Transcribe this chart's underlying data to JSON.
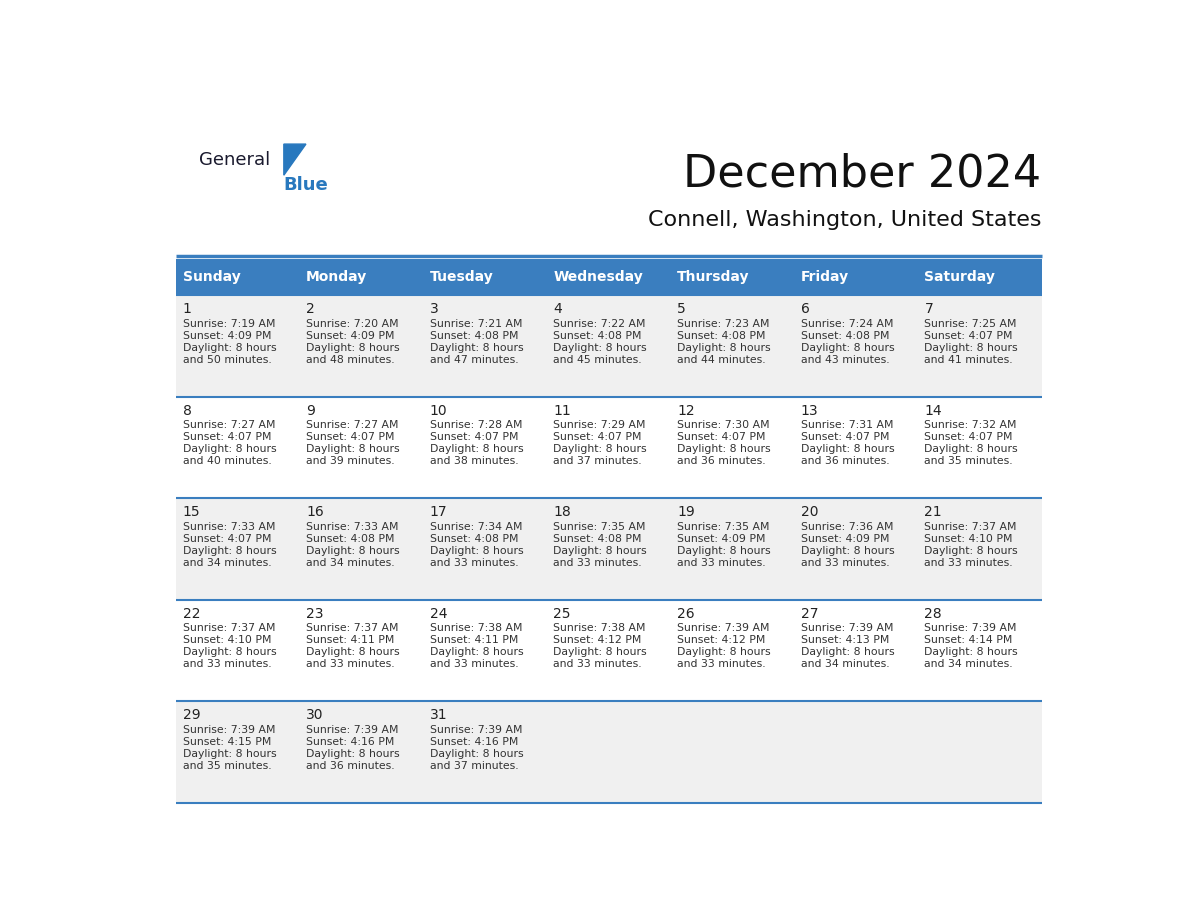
{
  "title": "December 2024",
  "subtitle": "Connell, Washington, United States",
  "header_bg": "#3a7ebf",
  "header_text_color": "#ffffff",
  "row_bg_even": "#f0f0f0",
  "row_bg_odd": "#ffffff",
  "border_color": "#3a7ebf",
  "day_names": [
    "Sunday",
    "Monday",
    "Tuesday",
    "Wednesday",
    "Thursday",
    "Friday",
    "Saturday"
  ],
  "days": [
    {
      "day": 1,
      "col": 0,
      "row": 0,
      "sunrise": "7:19 AM",
      "sunset": "4:09 PM",
      "daylight_min": "50 minutes."
    },
    {
      "day": 2,
      "col": 1,
      "row": 0,
      "sunrise": "7:20 AM",
      "sunset": "4:09 PM",
      "daylight_min": "48 minutes."
    },
    {
      "day": 3,
      "col": 2,
      "row": 0,
      "sunrise": "7:21 AM",
      "sunset": "4:08 PM",
      "daylight_min": "47 minutes."
    },
    {
      "day": 4,
      "col": 3,
      "row": 0,
      "sunrise": "7:22 AM",
      "sunset": "4:08 PM",
      "daylight_min": "45 minutes."
    },
    {
      "day": 5,
      "col": 4,
      "row": 0,
      "sunrise": "7:23 AM",
      "sunset": "4:08 PM",
      "daylight_min": "44 minutes."
    },
    {
      "day": 6,
      "col": 5,
      "row": 0,
      "sunrise": "7:24 AM",
      "sunset": "4:08 PM",
      "daylight_min": "43 minutes."
    },
    {
      "day": 7,
      "col": 6,
      "row": 0,
      "sunrise": "7:25 AM",
      "sunset": "4:07 PM",
      "daylight_min": "41 minutes."
    },
    {
      "day": 8,
      "col": 0,
      "row": 1,
      "sunrise": "7:27 AM",
      "sunset": "4:07 PM",
      "daylight_min": "40 minutes."
    },
    {
      "day": 9,
      "col": 1,
      "row": 1,
      "sunrise": "7:27 AM",
      "sunset": "4:07 PM",
      "daylight_min": "39 minutes."
    },
    {
      "day": 10,
      "col": 2,
      "row": 1,
      "sunrise": "7:28 AM",
      "sunset": "4:07 PM",
      "daylight_min": "38 minutes."
    },
    {
      "day": 11,
      "col": 3,
      "row": 1,
      "sunrise": "7:29 AM",
      "sunset": "4:07 PM",
      "daylight_min": "37 minutes."
    },
    {
      "day": 12,
      "col": 4,
      "row": 1,
      "sunrise": "7:30 AM",
      "sunset": "4:07 PM",
      "daylight_min": "36 minutes."
    },
    {
      "day": 13,
      "col": 5,
      "row": 1,
      "sunrise": "7:31 AM",
      "sunset": "4:07 PM",
      "daylight_min": "36 minutes."
    },
    {
      "day": 14,
      "col": 6,
      "row": 1,
      "sunrise": "7:32 AM",
      "sunset": "4:07 PM",
      "daylight_min": "35 minutes."
    },
    {
      "day": 15,
      "col": 0,
      "row": 2,
      "sunrise": "7:33 AM",
      "sunset": "4:07 PM",
      "daylight_min": "34 minutes."
    },
    {
      "day": 16,
      "col": 1,
      "row": 2,
      "sunrise": "7:33 AM",
      "sunset": "4:08 PM",
      "daylight_min": "34 minutes."
    },
    {
      "day": 17,
      "col": 2,
      "row": 2,
      "sunrise": "7:34 AM",
      "sunset": "4:08 PM",
      "daylight_min": "33 minutes."
    },
    {
      "day": 18,
      "col": 3,
      "row": 2,
      "sunrise": "7:35 AM",
      "sunset": "4:08 PM",
      "daylight_min": "33 minutes."
    },
    {
      "day": 19,
      "col": 4,
      "row": 2,
      "sunrise": "7:35 AM",
      "sunset": "4:09 PM",
      "daylight_min": "33 minutes."
    },
    {
      "day": 20,
      "col": 5,
      "row": 2,
      "sunrise": "7:36 AM",
      "sunset": "4:09 PM",
      "daylight_min": "33 minutes."
    },
    {
      "day": 21,
      "col": 6,
      "row": 2,
      "sunrise": "7:37 AM",
      "sunset": "4:10 PM",
      "daylight_min": "33 minutes."
    },
    {
      "day": 22,
      "col": 0,
      "row": 3,
      "sunrise": "7:37 AM",
      "sunset": "4:10 PM",
      "daylight_min": "33 minutes."
    },
    {
      "day": 23,
      "col": 1,
      "row": 3,
      "sunrise": "7:37 AM",
      "sunset": "4:11 PM",
      "daylight_min": "33 minutes."
    },
    {
      "day": 24,
      "col": 2,
      "row": 3,
      "sunrise": "7:38 AM",
      "sunset": "4:11 PM",
      "daylight_min": "33 minutes."
    },
    {
      "day": 25,
      "col": 3,
      "row": 3,
      "sunrise": "7:38 AM",
      "sunset": "4:12 PM",
      "daylight_min": "33 minutes."
    },
    {
      "day": 26,
      "col": 4,
      "row": 3,
      "sunrise": "7:39 AM",
      "sunset": "4:12 PM",
      "daylight_min": "33 minutes."
    },
    {
      "day": 27,
      "col": 5,
      "row": 3,
      "sunrise": "7:39 AM",
      "sunset": "4:13 PM",
      "daylight_min": "34 minutes."
    },
    {
      "day": 28,
      "col": 6,
      "row": 3,
      "sunrise": "7:39 AM",
      "sunset": "4:14 PM",
      "daylight_min": "34 minutes."
    },
    {
      "day": 29,
      "col": 0,
      "row": 4,
      "sunrise": "7:39 AM",
      "sunset": "4:15 PM",
      "daylight_min": "35 minutes."
    },
    {
      "day": 30,
      "col": 1,
      "row": 4,
      "sunrise": "7:39 AM",
      "sunset": "4:16 PM",
      "daylight_min": "36 minutes."
    },
    {
      "day": 31,
      "col": 2,
      "row": 4,
      "sunrise": "7:39 AM",
      "sunset": "4:16 PM",
      "daylight_min": "37 minutes."
    }
  ],
  "logo_color_general": "#1a1a2e",
  "logo_color_blue": "#2878be",
  "logo_triangle_color": "#2878be"
}
